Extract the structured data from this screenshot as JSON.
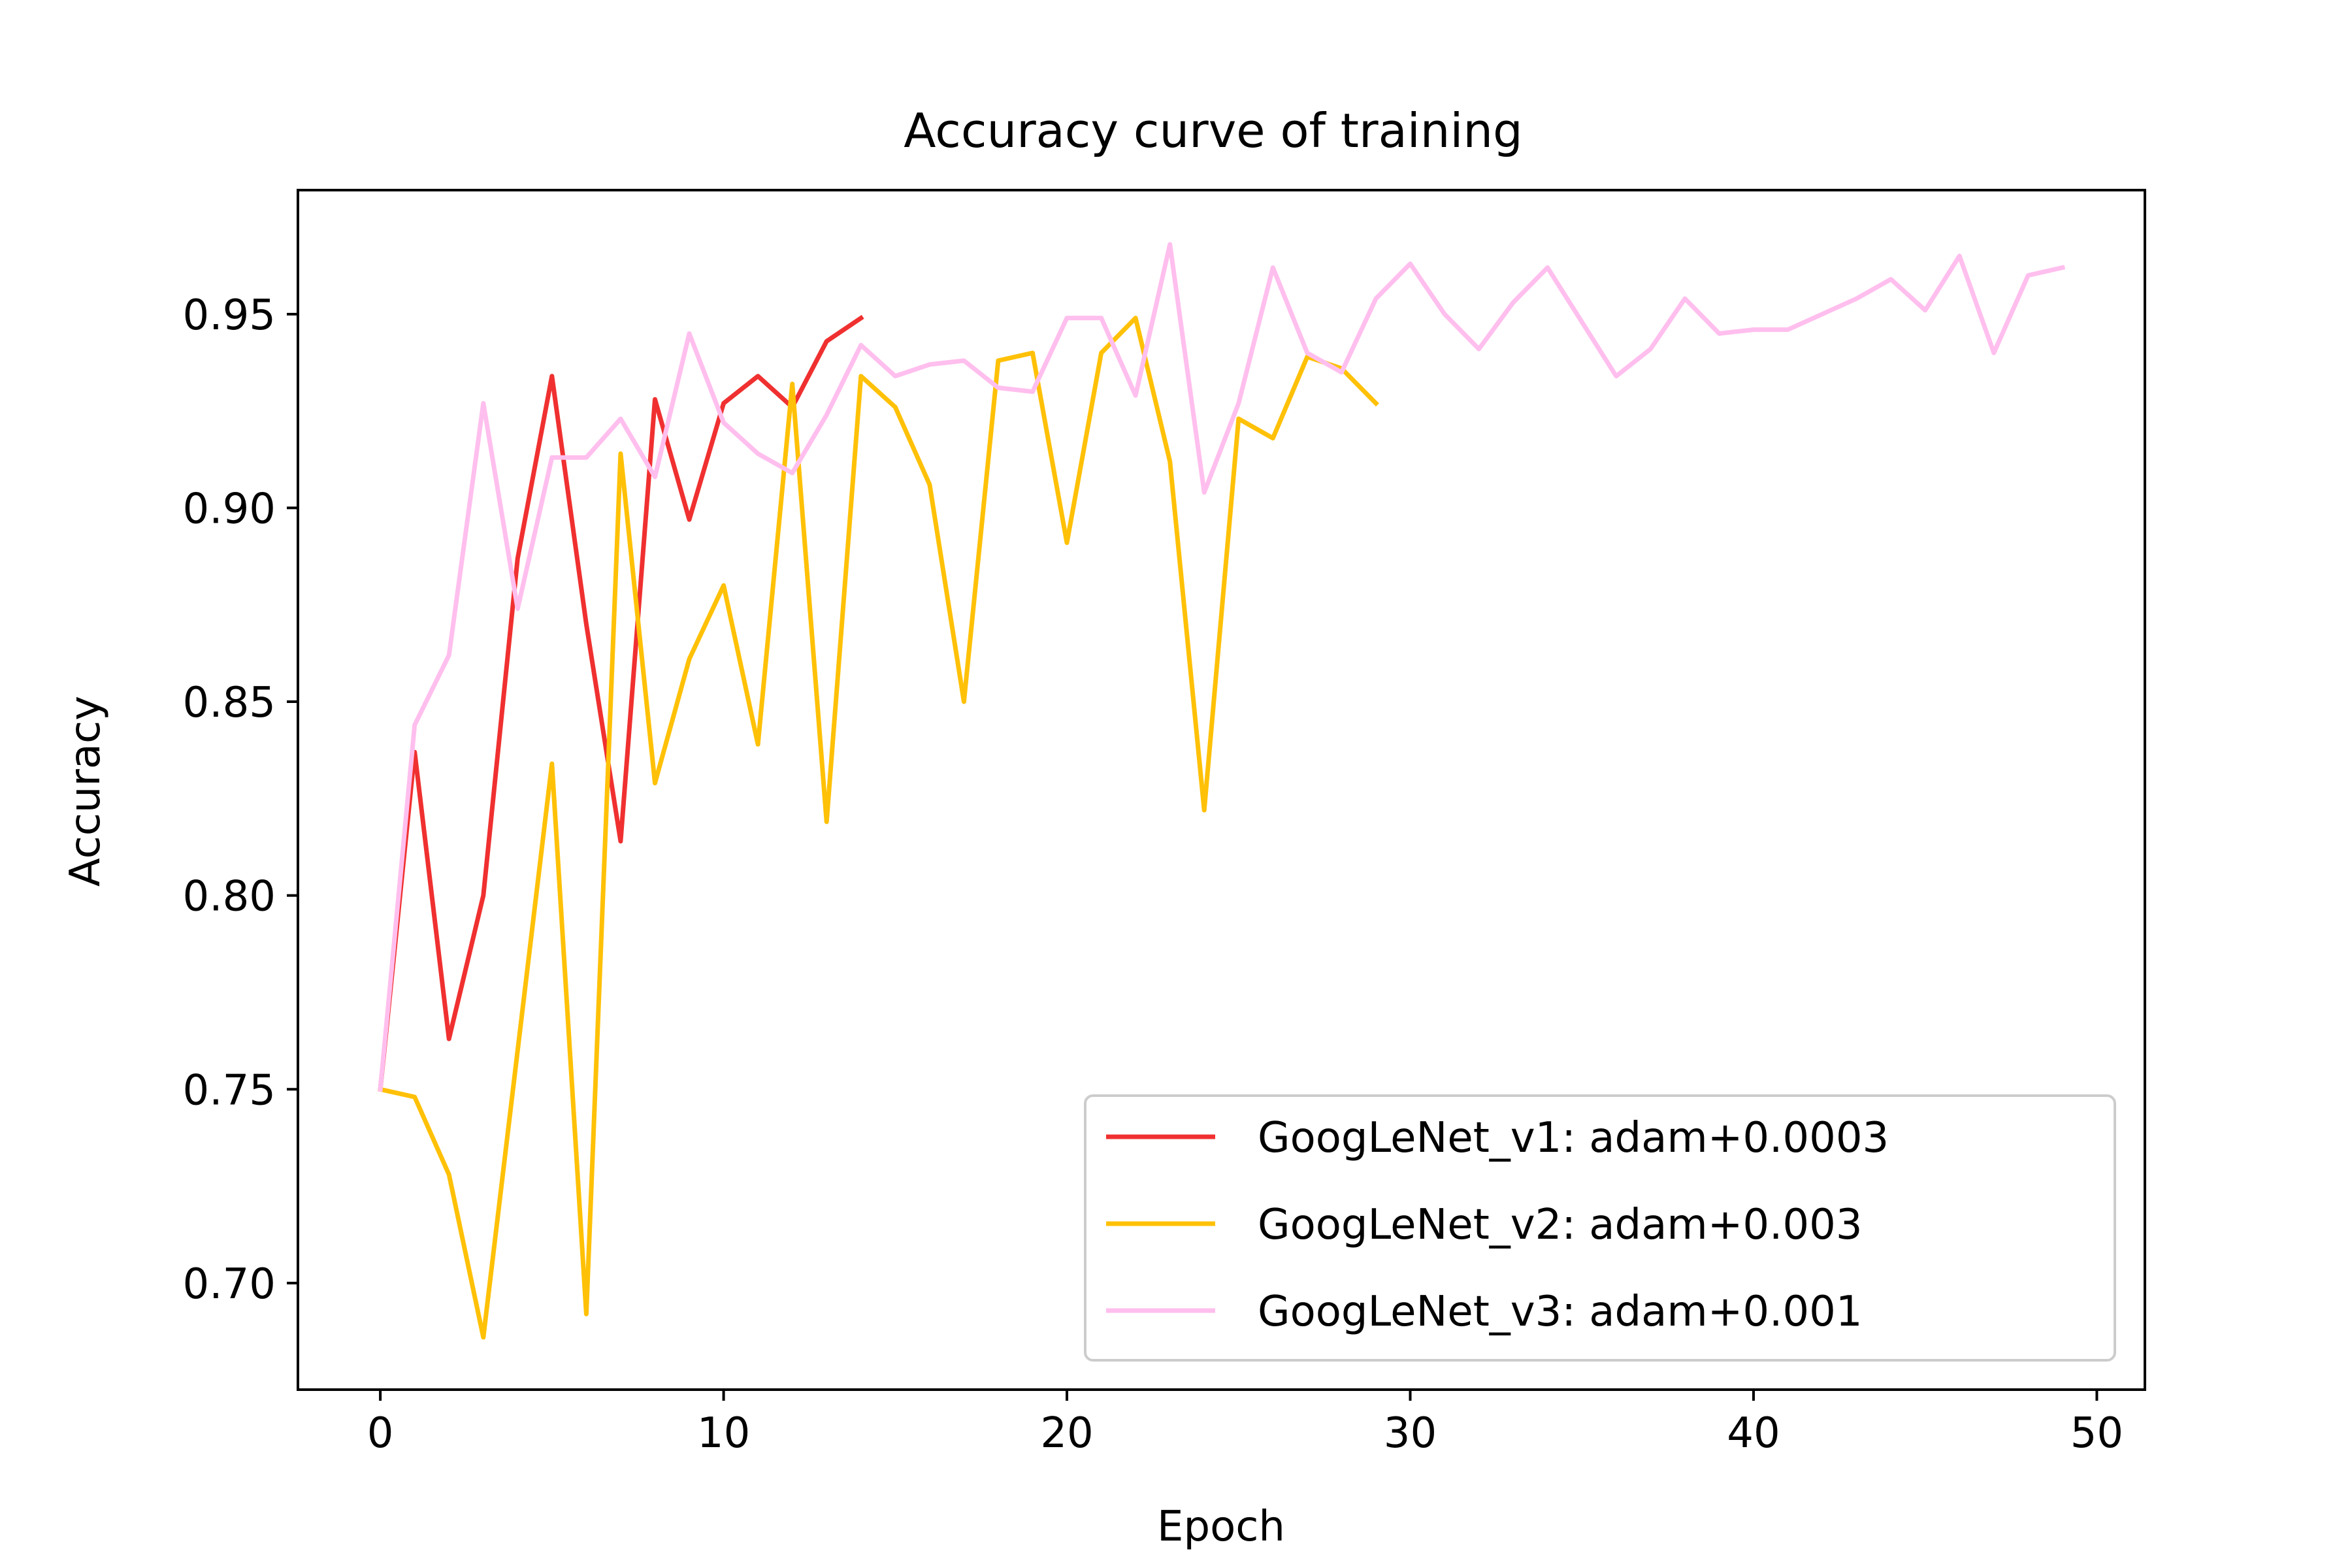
{
  "chart_data": {
    "type": "line",
    "title": "Accuracy curve of training",
    "xlabel": "Epoch",
    "ylabel": "Accuracy",
    "xlim": [
      -2.4,
      51.4
    ],
    "ylim": [
      0.6725,
      0.982
    ],
    "xticks": [
      0,
      10,
      20,
      30,
      40,
      50
    ],
    "xtick_labels": [
      "0",
      "10",
      "20",
      "30",
      "40",
      "50"
    ],
    "yticks": [
      0.7,
      0.75,
      0.8,
      0.85,
      0.9,
      0.95
    ],
    "ytick_labels": [
      "0.70",
      "0.75",
      "0.80",
      "0.85",
      "0.90",
      "0.95"
    ],
    "grid": false,
    "legend_position": "lower-right",
    "series": [
      {
        "name": "GoogLeNet_v1: adam+0.0003",
        "color": "#f03030",
        "x": [
          0,
          1,
          2,
          3,
          4,
          5,
          6,
          7,
          8,
          9,
          10,
          11,
          12,
          13,
          14
        ],
        "values": [
          0.75,
          0.837,
          0.763,
          0.8,
          0.887,
          0.934,
          0.87,
          0.814,
          0.928,
          0.897,
          0.927,
          0.934,
          0.926,
          0.943,
          0.949
        ]
      },
      {
        "name": "GoogLeNet_v2: adam+0.003",
        "color": "#ffc107",
        "x": [
          0,
          1,
          2,
          3,
          4,
          5,
          6,
          7,
          8,
          9,
          10,
          11,
          12,
          13,
          14,
          15,
          16,
          17,
          18,
          19,
          20,
          21,
          22,
          23,
          24,
          25,
          26,
          27,
          28,
          29
        ],
        "values": [
          0.75,
          0.748,
          0.728,
          0.686,
          0.76,
          0.834,
          0.692,
          0.914,
          0.829,
          0.861,
          0.88,
          0.839,
          0.932,
          0.819,
          0.934,
          0.926,
          0.906,
          0.85,
          0.938,
          0.94,
          0.891,
          0.94,
          0.949,
          0.912,
          0.822,
          0.923,
          0.918,
          0.939,
          0.936,
          0.927
        ]
      },
      {
        "name": "GoogLeNet_v3: adam+0.001",
        "color": "#ffbfee",
        "x": [
          0,
          1,
          2,
          3,
          4,
          5,
          6,
          7,
          8,
          9,
          10,
          11,
          12,
          13,
          14,
          15,
          16,
          17,
          18,
          19,
          20,
          21,
          22,
          23,
          24,
          25,
          26,
          27,
          28,
          29,
          30,
          31,
          32,
          33,
          34,
          35,
          36,
          37,
          38,
          39,
          40,
          41,
          42,
          43,
          44,
          45,
          46,
          47,
          48,
          49
        ],
        "values": [
          0.75,
          0.844,
          0.862,
          0.927,
          0.874,
          0.913,
          0.913,
          0.923,
          0.908,
          0.945,
          0.922,
          0.914,
          0.909,
          0.924,
          0.942,
          0.934,
          0.937,
          0.938,
          0.931,
          0.93,
          0.949,
          0.949,
          0.929,
          0.968,
          0.904,
          0.927,
          0.962,
          0.94,
          0.935,
          0.954,
          0.963,
          0.95,
          0.941,
          0.953,
          0.962,
          0.948,
          0.934,
          0.941,
          0.954,
          0.945,
          0.946,
          0.946,
          0.95,
          0.954,
          0.959,
          0.951,
          0.965,
          0.94,
          0.96,
          0.962
        ]
      }
    ]
  }
}
